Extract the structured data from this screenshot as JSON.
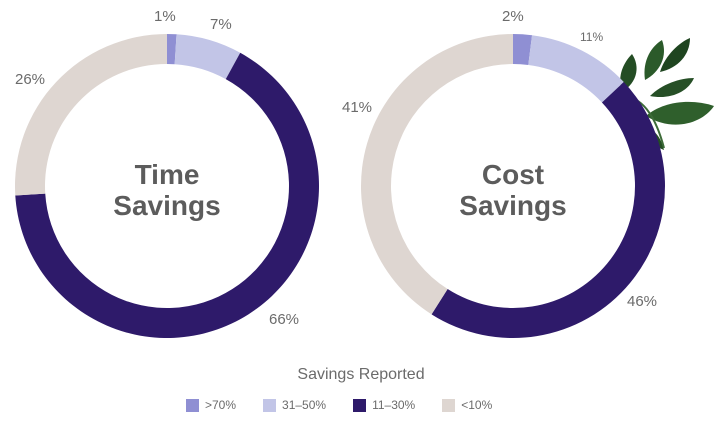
{
  "chart_data": {
    "type": "pie",
    "legend": {
      "title": "Savings Reported",
      "placement": "bottom",
      "entries": [
        {
          "label": ">70%",
          "color": "#8f8fd3"
        },
        {
          "label": "31–50%",
          "color": "#c2c5e7"
        },
        {
          "label": "11–30%",
          "color": "#2e1a6a"
        },
        {
          "label": "<10%",
          "color": "#ded6d1"
        }
      ]
    },
    "charts": [
      {
        "center_label_lines": [
          "Time",
          "Savings"
        ],
        "slices": [
          {
            "category": ">70%",
            "value": 1,
            "label": "1%"
          },
          {
            "category": "31–50%",
            "value": 7,
            "label": "7%"
          },
          {
            "category": "11–30%",
            "value": 66,
            "label": "66%"
          },
          {
            "category": "<10%",
            "value": 26,
            "label": "26%"
          }
        ]
      },
      {
        "center_label_lines": [
          "Cost",
          "Savings"
        ],
        "slices": [
          {
            "category": ">70%",
            "value": 2,
            "label": "2%"
          },
          {
            "category": "31–50%",
            "value": 11,
            "label": "11%"
          },
          {
            "category": "11–30%",
            "value": 46,
            "label": "46%"
          },
          {
            "category": "<10%",
            "value": 41,
            "label": "41%"
          }
        ]
      }
    ]
  }
}
